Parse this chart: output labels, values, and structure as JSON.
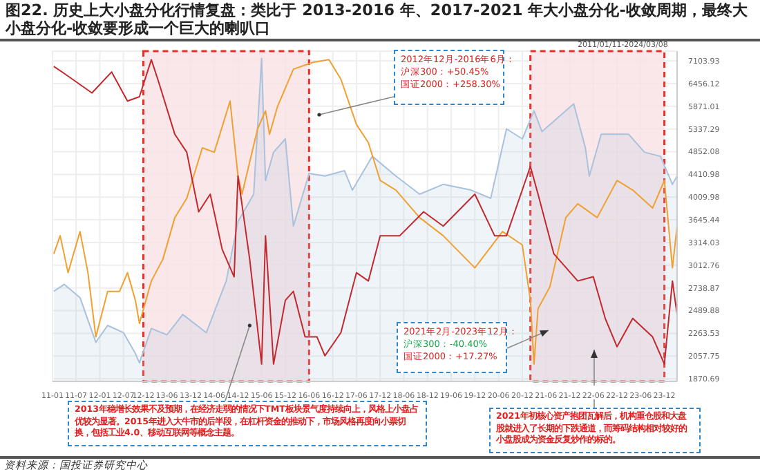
{
  "chart_data": {
    "type": "line",
    "title": "图22. 历史上大小盘分化行情复盘：类比于 2013-2016 年、2017-2021 年大小盘分化-收敛周期，最终大小盘分化-收敛要形成一个巨大的喇叭口",
    "annotations": [
      "2012年12月-2016年6月：",
      "沪深300：+50.45%",
      "国证2000：+258.30%",
      "2021年2月-2023年12月：",
      "沪深300：-40.40%",
      "国证2000：+17.27%",
      {
        "text": "2013年稳增长效果不及预期，在经济走弱的情况下TMT板块景气度持续向上，风格上小盘占优较为显著。2015年进入大牛市的后半段，在杠杆资金的推动下，市场风格再度向小票切换，包括工业4.0、移动互联网等概念主题。",
        "x": "2015-03",
        "y": 2340
      },
      "2021年初核心资产抱团瓦解后，机构重仓股和大盘股就进入了长期的下跌通道，而筹码结构相对较好的小盘股成为资金反复炒作的标的。",
      "资料来源：国投证券研究中心",
      "2011/01/11-2024/03/08"
    ],
    "series": [
      {
        "type": "area",
        "color": "#a9c1dc",
        "x": [
          "2011-01-11",
          "2011-04",
          "2011-08",
          "2011-12",
          "2012-03",
          "2012-07",
          "2012-10",
          "2012-11",
          "2013-02",
          "2013-06",
          "2013-10",
          "2014-04",
          "2014-09",
          "2014-12",
          "2015-04",
          "2015-06",
          "2015-07",
          "2015-09",
          "2015-12",
          "2016-02",
          "2016-06",
          "2016-10",
          "2017-03",
          "2017-05",
          "2017-10",
          "2018-04",
          "2018-10",
          "2019-04",
          "2019-11",
          "2020-04",
          "2020-08",
          "2020-12",
          "2021-03",
          "2021-05",
          "2022-01",
          "2022-04",
          "2022-05",
          "2022-08",
          "2023-03",
          "2023-07",
          "2023-11",
          "2024-02",
          "2024-03-08"
        ],
        "values": [
          2700,
          2780,
          2630,
          2180,
          2340,
          2270,
          2080,
          2000,
          2310,
          2250,
          2450,
          2270,
          2820,
          3620,
          4060,
          7180,
          4300,
          4840,
          5120,
          3550,
          4430,
          4380,
          4480,
          4130,
          4760,
          4380,
          4060,
          4230,
          4130,
          3990,
          5340,
          5120,
          5760,
          5280,
          5930,
          4930,
          4380,
          5220,
          5220,
          4840,
          4760,
          4230,
          4380
        ]
      },
      {
        "color": "#f0a030",
        "x": [
          "2011-01-11",
          "2011-03",
          "2011-05",
          "2011-08",
          "2011-10",
          "2011-12",
          "2012-03",
          "2012-06",
          "2012-08",
          "2012-10",
          "2012-11",
          "2013-02",
          "2013-05",
          "2013-08",
          "2013-11",
          "2014-03",
          "2014-06",
          "2014-10",
          "2014-12",
          "2015-01",
          "2015-05",
          "2015-07",
          "2015-08",
          "2015-10",
          "2016-02",
          "2016-07",
          "2016-11",
          "2017-02",
          "2017-06",
          "2017-09",
          "2017-12",
          "2018-04",
          "2018-10",
          "2019-04",
          "2019-12",
          "2020-07",
          "2020-12",
          "2021-02",
          "2021-03",
          "2021-04",
          "2021-07",
          "2021-11",
          "2022-02",
          "2022-07",
          "2022-12",
          "2023-04",
          "2023-09",
          "2023-12",
          "2024-02",
          "2024-03-08"
        ],
        "values": [
          3160,
          3410,
          2920,
          3470,
          2920,
          2230,
          2700,
          2700,
          2920,
          2600,
          2360,
          2820,
          3090,
          3680,
          3990,
          4930,
          4840,
          6000,
          4380,
          4060,
          5340,
          5760,
          5220,
          5860,
          6860,
          7060,
          7140,
          6580,
          5440,
          5040,
          4300,
          4130,
          3680,
          3410,
          2980,
          3470,
          3280,
          2600,
          1990,
          2510,
          2750,
          3680,
          3900,
          3680,
          4300,
          4130,
          3830,
          4300,
          2980,
          3550
        ]
      },
      {
        "color": "#c0282d",
        "x": [
          "2011-01-11",
          "2011-04",
          "2011-11",
          "2012-04",
          "2012-08",
          "2012-11",
          "2013-02",
          "2013-04",
          "2013-08",
          "2013-11",
          "2014-02",
          "2014-05",
          "2014-08",
          "2014-11",
          "2014-12",
          "2015-03",
          "2015-06",
          "2015-07",
          "2015-09",
          "2015-12",
          "2016-02",
          "2016-05",
          "2016-08",
          "2016-10",
          "2017-02",
          "2017-06",
          "2017-09",
          "2017-12",
          "2018-05",
          "2018-11",
          "2019-04",
          "2019-12",
          "2020-05",
          "2020-08",
          "2021-02",
          "2021-04",
          "2021-08",
          "2022-02",
          "2022-06",
          "2022-09",
          "2022-12",
          "2023-04",
          "2023-09",
          "2023-12",
          "2024-02",
          "2024-03-08"
        ],
        "values": [
          6940,
          6740,
          6210,
          6780,
          6000,
          6110,
          7140,
          6470,
          5220,
          4840,
          3770,
          4060,
          3220,
          2870,
          4380,
          3090,
          1990,
          3410,
          1990,
          2600,
          2700,
          2230,
          2230,
          2060,
          2270,
          2920,
          2820,
          3410,
          3410,
          3770,
          3550,
          4060,
          3410,
          3410,
          4560,
          4060,
          3160,
          2820,
          2870,
          2410,
          2140,
          2410,
          2230,
          1990,
          2820,
          2450
        ]
      }
    ],
    "xlim": [
      "2011-01",
      "2024-03-08"
    ],
    "xticks": [
      {
        "value": "2011-01",
        "label": "11-01"
      },
      {
        "value": "2011-07",
        "label": "11-07"
      },
      {
        "value": "2012-01",
        "label": "12-01"
      },
      {
        "value": "2012-07",
        "label": "12-07"
      },
      {
        "value": "2012-12",
        "label": "12-12"
      },
      {
        "value": "2013-06",
        "label": "13-06"
      },
      {
        "value": "2013-12",
        "label": "13-12"
      },
      {
        "value": "2014-06",
        "label": "14-06"
      },
      {
        "value": "2014-12",
        "label": "14-12"
      },
      {
        "value": "2015-06",
        "label": "15-06"
      },
      {
        "value": "2015-12",
        "label": "15-12"
      },
      {
        "value": "2016-06",
        "label": "16-06"
      },
      {
        "value": "2016-12",
        "label": "16-12"
      },
      {
        "value": "2017-06",
        "label": "17-06"
      },
      {
        "value": "2017-12",
        "label": "17-12"
      },
      {
        "value": "2018-06",
        "label": "18-06"
      },
      {
        "value": "2018-12",
        "label": "18-12"
      },
      {
        "value": "2019-06",
        "label": "19-06"
      },
      {
        "value": "2019-12",
        "label": "19-12"
      },
      {
        "value": "2020-06",
        "label": "20-06"
      },
      {
        "value": "2020-12",
        "label": "20-12"
      },
      {
        "value": "2021-06",
        "label": "21-06"
      },
      {
        "value": "2021-12",
        "label": "21-12"
      },
      {
        "value": "2022-06",
        "label": "22-06"
      },
      {
        "value": "2022-12",
        "label": "22-12"
      },
      {
        "value": "2023-06",
        "label": "23-06"
      },
      {
        "value": "2023-12",
        "label": "23-12"
      }
    ],
    "ylim": [
      1850,
      7400
    ],
    "yticks": [
      1870.69,
      2057.75,
      2263.53,
      2489.88,
      2738.87,
      3012.76,
      3314.03,
      3645.44,
      4009.98,
      4410.98,
      4852.08,
      5337.29,
      5871.01,
      6456.12,
      7103.93
    ],
    "log": true,
    "grid": true,
    "bands": [
      {
        "axis": "x",
        "from": "2012-12",
        "to": "2016-06",
        "color": "#f8e1e3"
      },
      {
        "axis": "x",
        "from": "2021-02",
        "to": "2023-12",
        "color": "#f8e1e3"
      }
    ]
  }
}
